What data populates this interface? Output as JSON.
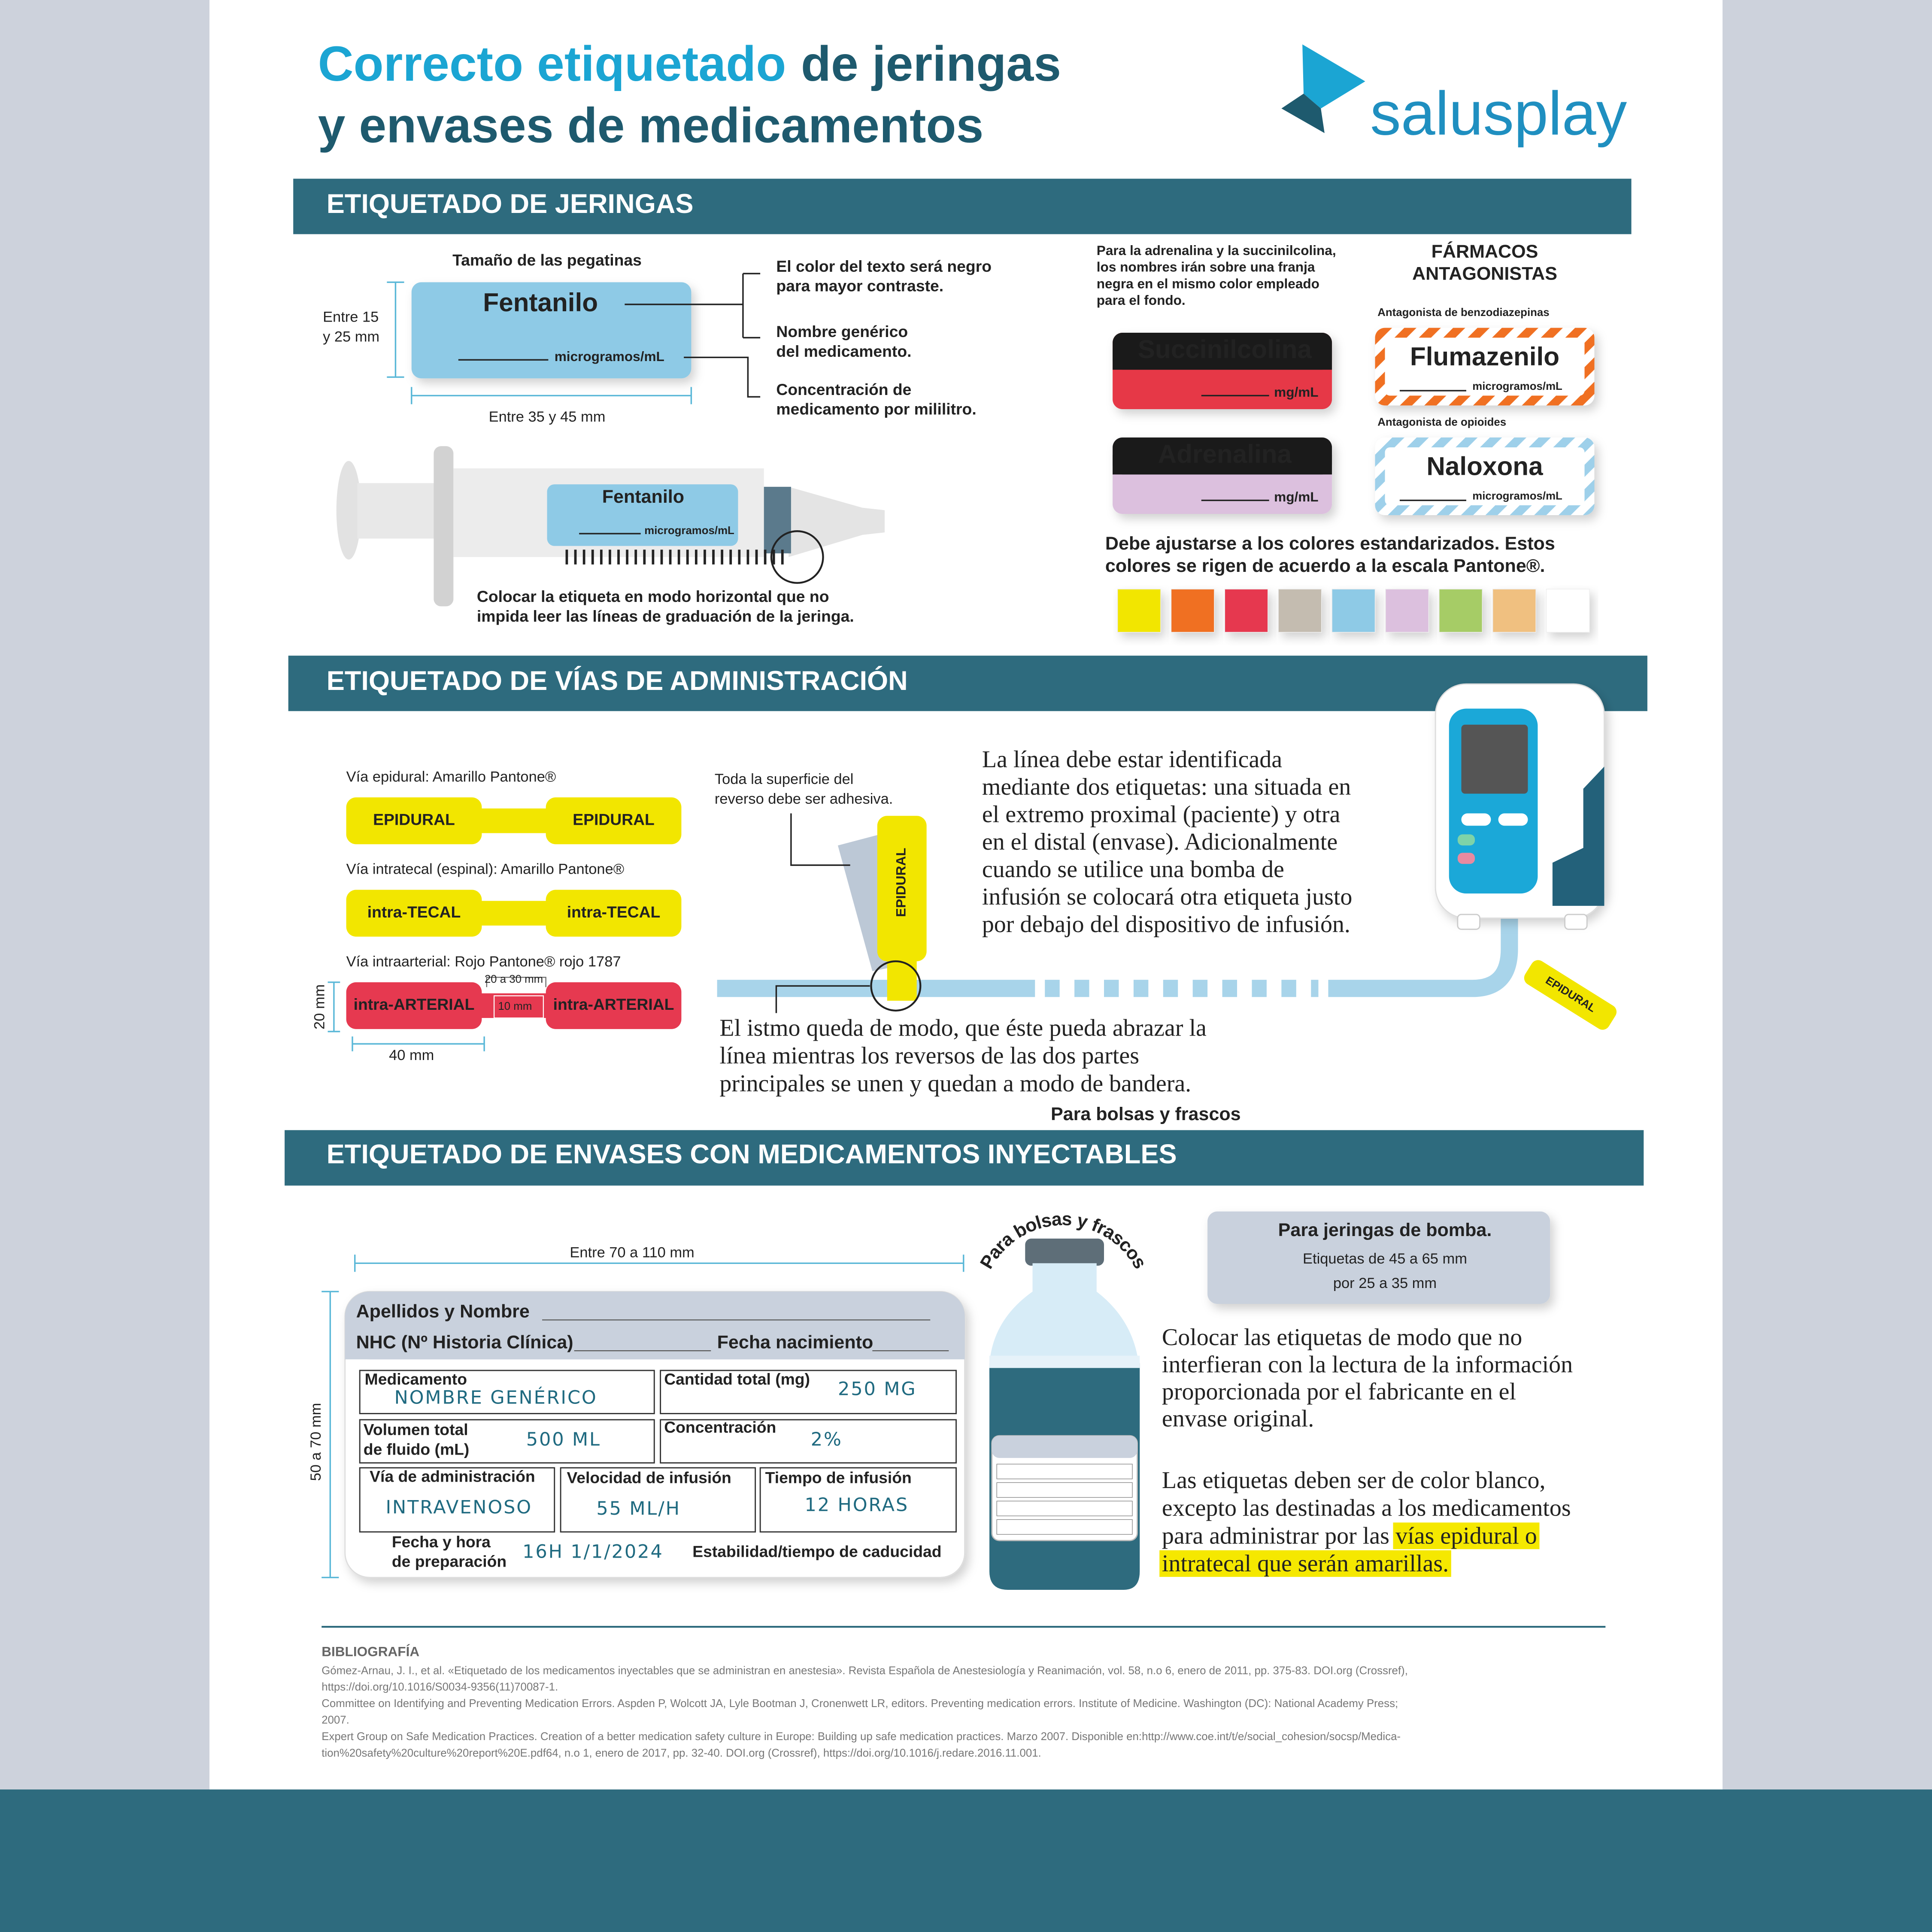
{
  "header": {
    "title_a": "Correcto etiquetado",
    "title_b": "de jeringas",
    "title_c": "y envases de medicamentos",
    "brand": "salusplay"
  },
  "syringes": {
    "heading": "ETIQUETADO DE JERINGAS",
    "size_title": "Tamaño de las pegatinas",
    "drug": "Fentanilo",
    "unit": "microgramos/mL",
    "height": [
      "Entre 15",
      "y 25 mm"
    ],
    "width": "Entre 35 y 45 mm",
    "notes": [
      [
        "El color del texto será negro",
        "para mayor contraste."
      ],
      [
        "Nombre genérico",
        "del medicamento."
      ],
      [
        "Concentración de",
        "medicamento por mililitro."
      ]
    ],
    "placement": [
      "Colocar la etiqueta en modo horizontal que no",
      "impida leer las líneas de graduación de la jeringa."
    ],
    "black_band_note": [
      "Para la adrenalina y la succinilcolina,",
      "los nombres irán sobre una franja",
      "negra en el mismo color empleado",
      "para el fondo."
    ],
    "antagonists_title": [
      "FÁRMACOS",
      "ANTAGONISTAS"
    ],
    "labels": [
      {
        "name": "Succinilcolina",
        "unit": "mg/mL",
        "color": "#e63946"
      },
      {
        "name": "Adrenalina",
        "unit": "mg/mL",
        "color": "#dcc0de"
      }
    ],
    "antagonists": [
      {
        "caption": "Antagonista de benzodiazepinas",
        "name": "Flumazenilo",
        "unit": "microgramos/mL",
        "color": "#f07020"
      },
      {
        "caption": "Antagonista de opioides",
        "name": "Naloxona",
        "unit": "microgramos/mL",
        "color": "#9ed0ea"
      }
    ],
    "pantone_note": [
      "Debe ajustarse a los colores estandarizados. Estos",
      "colores se rigen de acuerdo a la escala Pantone®."
    ],
    "pantone_colors": [
      "#f2e600",
      "#f07020",
      "#e63950",
      "#c4bcb0",
      "#8ecae6",
      "#dcc0de",
      "#a6cc66",
      "#f0c080",
      "#ffffff"
    ]
  },
  "routes": {
    "heading": "ETIQUETADO DE VÍAS DE ADMINISTRACIÓN",
    "examples": [
      {
        "caption": "Vía epidural: Amarillo Pantone®",
        "label": "EPIDURAL",
        "color": "#f2e600"
      },
      {
        "caption": "Vía intratecal (espinal): Amarillo Pantone®",
        "label": "intra-TECAL",
        "color": "#f2e600"
      },
      {
        "caption": "Vía intraarterial: Rojo Pantone® rojo 1787",
        "label": "intra-ARTERIAL",
        "color": "#e63950"
      }
    ],
    "dims": {
      "gap": "20 a 30 mm",
      "isthmus": "10 mm",
      "height": "20 mm",
      "width": "40 mm"
    },
    "adhesive_note": [
      "Toda la superficie del",
      "reverso debe ser adhesiva."
    ],
    "tag": "EPIDURAL",
    "line_text": [
      "La línea debe estar identificada",
      "mediante dos etiquetas: una situada en",
      "el extremo proximal (paciente) y otra",
      "en el distal (envase). Adicionalmente",
      "cuando se utilice una bomba de",
      "infusión se colocará otra etiqueta justo",
      "por debajo del dispositivo de infusión."
    ],
    "isthmus_text": [
      "El istmo queda de modo, que éste pueda abrazar la",
      "línea mientras los reversos de las dos partes",
      "principales se unen y quedan a modo de bandera."
    ],
    "caption": "Para bolsas y frascos"
  },
  "containers": {
    "heading": "ETIQUETADO DE ENVASES CON MEDICAMENTOS INYECTABLES",
    "width": "Entre 70 a 110 mm",
    "height": "50 a 70 mm",
    "card": {
      "name": "Apellidos y Nombre",
      "record": "NHC (Nº Historia Clínica)",
      "birth": "Fecha nacimiento",
      "drug": "Medicamento",
      "drug_value": "NOMBRE GENÉRICO",
      "total": "Cantidad total (mg)",
      "total_value": "250 MG",
      "volume": [
        "Volumen total",
        "de fluido (mL)"
      ],
      "volume_value": "500 ML",
      "conc": "Concentración",
      "conc_value": "2%",
      "route": "Vía de administración",
      "route_value": "INTRAVENOSO",
      "rate": "Velocidad de infusión",
      "rate_value": "55 ML/H",
      "time": "Tiempo de infusión",
      "time_value": "12 HORAS",
      "prepared": [
        "Fecha y hora",
        "de preparación"
      ],
      "prepared_value": "16H 1/1/2024",
      "stability": "Estabilidad/tiempo de caducidad"
    },
    "bottle_caption": "Para bolsas y frascos",
    "pump": {
      "title": "Para jeringas de bomba.",
      "lines": [
        "Etiquetas de 45 a 65 mm",
        "por 25 a 35 mm"
      ]
    },
    "placement": [
      "Colocar las etiquetas de modo que no",
      "interfieran con la lectura de la información",
      "proporcionada por el fabricante en el",
      "envase original."
    ],
    "color_rule": [
      "Las etiquetas deben ser de color blanco,",
      "excepto las destinadas a los medicamentos",
      "para administrar por las"
    ],
    "color_rule_highlight": [
      "vías epidural o",
      "intratecal que serán amarillas."
    ]
  },
  "bibliography": {
    "title": "BIBLIOGRAFÍA",
    "lines": [
      "Gómez-Arnau, J. I., et al. «Etiquetado de los medicamentos inyectables que se administran en anestesia». Revista Española de Anestesiología y Reanimación, vol. 58, n.o 6, enero de 2011, pp. 375-83. DOI.org (Crossref),",
      "https://doi.org/10.1016/S0034-9356(11)70087-1.",
      "Committee on Identifying and Preventing Medication Errors. Aspden P, Wolcott JA, Lyle Bootman J, Cronenwett LR, editors. Preventing medication errors. Institute of Medicine. Washington (DC): National Academy Press;",
      "2007.",
      "Expert Group on Safe Medication Practices. Creation of a better medication safety culture in Europe: Building up safe medication practices. Marzo 2007. Disponible en:http://www.coe.int/t/e/social_cohesion/socsp/Medica-",
      "tion%20safety%20culture%20report%20E.pdf64, n.o 1, enero de 2017, pp. 32-40. DOI.org (Crossref), https://doi.org/10.1016/j.redare.2016.11.001."
    ]
  }
}
